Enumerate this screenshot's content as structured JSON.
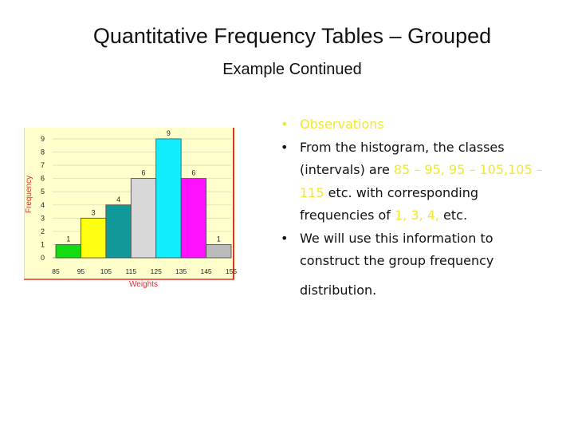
{
  "slide": {
    "title": "Quantitative Frequency Tables – Grouped",
    "subtitle": "Example Continued",
    "bullet_symbol": "•",
    "bullets": {
      "b1": {
        "text": "Observations"
      },
      "b2": {
        "t1": "From the histogram, the classes (intervals) are ",
        "h1": "85 – 95, 95 – 105,105 – 115",
        "t2": " etc. with corresponding frequencies of ",
        "h2": "1, 3, 4,",
        "t3": " etc."
      },
      "b3": {
        "t1": "We will use this information to construct the group frequency",
        "t2": "distribution."
      }
    },
    "highlight_color": "#f2e72f"
  },
  "chart_data": {
    "type": "bar",
    "ylabel": "Frequency",
    "xlabel": "Weights",
    "bins": [
      85,
      95,
      105,
      115,
      125,
      135,
      145,
      155
    ],
    "xticks": [
      "85",
      "95",
      "105",
      "115",
      "125",
      "135",
      "145",
      "155"
    ],
    "values": [
      1,
      3,
      4,
      6,
      9,
      6,
      1
    ],
    "labels": [
      "1",
      "3",
      "4",
      "6",
      "9",
      "6",
      "1"
    ],
    "colors": [
      "#11dd11",
      "#ffff11",
      "#119999",
      "#d8d8d8",
      "#11eeff",
      "#ff11ff",
      "#bbbbbb"
    ],
    "yticks": [
      "0",
      "1",
      "2",
      "3",
      "4",
      "5",
      "6",
      "7",
      "8",
      "9"
    ],
    "ylim": [
      0,
      9.6
    ],
    "background": "#ffffcc",
    "border_color": "#dd3333"
  }
}
